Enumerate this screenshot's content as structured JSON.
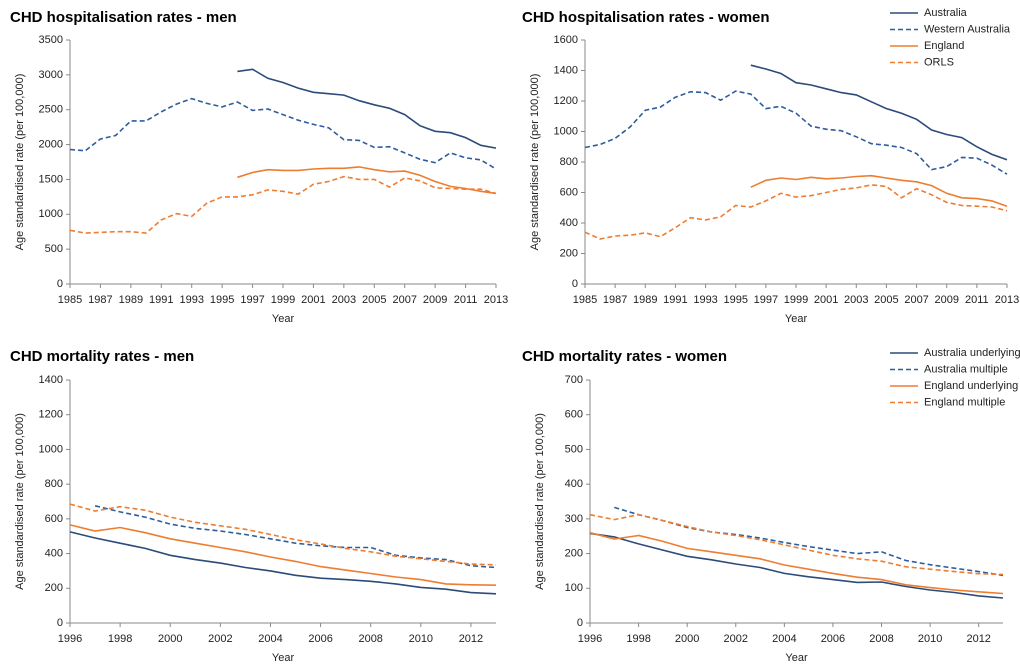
{
  "chart_data": [
    {
      "type": "line",
      "title": "CHD hospitalisation rates - men",
      "x_label": "Year",
      "y_label": "Age standardised rate (per 100,000)",
      "x": [
        1985,
        1986,
        1987,
        1988,
        1989,
        1990,
        1991,
        1992,
        1993,
        1994,
        1995,
        1996,
        1997,
        1998,
        1999,
        2000,
        2001,
        2002,
        2003,
        2004,
        2005,
        2006,
        2007,
        2008,
        2009,
        2010,
        2011,
        2012,
        2013
      ],
      "xlim": [
        1985,
        2013
      ],
      "xticks": [
        1985,
        1987,
        1989,
        1991,
        1993,
        1995,
        1997,
        1999,
        2001,
        2003,
        2005,
        2007,
        2009,
        2011,
        2013
      ],
      "ylim": [
        0,
        3500
      ],
      "yticks": [
        0,
        500,
        1000,
        1500,
        2000,
        2500,
        3000,
        3500
      ],
      "legend": false,
      "series": [
        {
          "color": "#2b4b7a",
          "dash": false,
          "values": [
            null,
            null,
            null,
            null,
            null,
            null,
            null,
            null,
            null,
            null,
            null,
            3050,
            3080,
            2950,
            2890,
            2810,
            2750,
            2730,
            2710,
            2630,
            2570,
            2520,
            2430,
            2270,
            2190,
            2170,
            2100,
            1990,
            1950
          ]
        },
        {
          "color": "#2e5d9e",
          "dash": true,
          "values": [
            1930,
            1910,
            2080,
            2130,
            2340,
            2340,
            2470,
            2580,
            2660,
            2590,
            2540,
            2610,
            2490,
            2510,
            2430,
            2350,
            2290,
            2240,
            2070,
            2060,
            1960,
            1970,
            1880,
            1790,
            1740,
            1880,
            1810,
            1780,
            1650
          ]
        },
        {
          "color": "#ed7d31",
          "dash": false,
          "values": [
            null,
            null,
            null,
            null,
            null,
            null,
            null,
            null,
            null,
            null,
            null,
            1530,
            1600,
            1640,
            1630,
            1630,
            1650,
            1660,
            1660,
            1680,
            1640,
            1610,
            1620,
            1560,
            1470,
            1400,
            1370,
            1330,
            1300
          ]
        },
        {
          "color": "#ed7d31",
          "dash": true,
          "values": [
            770,
            730,
            740,
            750,
            750,
            730,
            920,
            1010,
            970,
            1160,
            1250,
            1250,
            1280,
            1350,
            1330,
            1290,
            1430,
            1470,
            1540,
            1500,
            1500,
            1390,
            1520,
            1480,
            1380,
            1370,
            1360,
            1360,
            1300
          ]
        }
      ]
    },
    {
      "type": "line",
      "title": "CHD hospitalisation rates - women",
      "x_label": "Year",
      "y_label": "Age standardised rate (per 100,000)",
      "x": [
        1985,
        1986,
        1987,
        1988,
        1989,
        1990,
        1991,
        1992,
        1993,
        1994,
        1995,
        1996,
        1997,
        1998,
        1999,
        2000,
        2001,
        2002,
        2003,
        2004,
        2005,
        2006,
        2007,
        2008,
        2009,
        2010,
        2011,
        2012,
        2013
      ],
      "xlim": [
        1985,
        2013
      ],
      "xticks": [
        1985,
        1987,
        1989,
        1991,
        1993,
        1995,
        1997,
        1999,
        2001,
        2003,
        2005,
        2007,
        2009,
        2011,
        2013
      ],
      "ylim": [
        0,
        1600
      ],
      "yticks": [
        0,
        200,
        400,
        600,
        800,
        1000,
        1200,
        1400,
        1600
      ],
      "legend": "upper right",
      "series": [
        {
          "name": "Australia",
          "color": "#2b4b7a",
          "dash": false,
          "values": [
            null,
            null,
            null,
            null,
            null,
            null,
            null,
            null,
            null,
            null,
            null,
            1435,
            1410,
            1380,
            1320,
            1305,
            1280,
            1255,
            1240,
            1195,
            1150,
            1120,
            1080,
            1010,
            980,
            960,
            900,
            850,
            815
          ]
        },
        {
          "name": "Western Australia",
          "color": "#2e5d9e",
          "dash": true,
          "values": [
            895,
            915,
            955,
            1030,
            1140,
            1160,
            1225,
            1260,
            1255,
            1205,
            1265,
            1245,
            1150,
            1165,
            1120,
            1035,
            1015,
            1005,
            965,
            920,
            910,
            895,
            855,
            750,
            770,
            830,
            825,
            780,
            720
          ]
        },
        {
          "name": "England",
          "color": "#ed7d31",
          "dash": false,
          "values": [
            null,
            null,
            null,
            null,
            null,
            null,
            null,
            null,
            null,
            null,
            null,
            635,
            680,
            695,
            685,
            700,
            690,
            695,
            705,
            710,
            695,
            680,
            670,
            645,
            595,
            565,
            560,
            545,
            510
          ]
        },
        {
          "name": "ORLS",
          "color": "#ed7d31",
          "dash": true,
          "values": [
            340,
            295,
            315,
            320,
            335,
            310,
            370,
            435,
            420,
            440,
            515,
            505,
            545,
            595,
            570,
            580,
            600,
            620,
            630,
            650,
            640,
            565,
            625,
            585,
            535,
            515,
            510,
            505,
            480
          ]
        }
      ]
    },
    {
      "type": "line",
      "title": "CHD mortality rates - men",
      "x_label": "Year",
      "y_label": "Age standardised rate (per 100,000)",
      "x": [
        1996,
        1997,
        1998,
        1999,
        2000,
        2001,
        2002,
        2003,
        2004,
        2005,
        2006,
        2007,
        2008,
        2009,
        2010,
        2011,
        2012,
        2013
      ],
      "xlim": [
        1996,
        2013
      ],
      "xticks": [
        1996,
        1998,
        2000,
        2002,
        2004,
        2006,
        2008,
        2010,
        2012
      ],
      "ylim": [
        0,
        1400
      ],
      "yticks": [
        0,
        200,
        400,
        600,
        800,
        1000,
        1200,
        1400
      ],
      "legend": false,
      "series": [
        {
          "color": "#2b4b7a",
          "dash": false,
          "values": [
            525,
            490,
            460,
            430,
            390,
            365,
            345,
            320,
            300,
            275,
            258,
            250,
            240,
            225,
            205,
            195,
            175,
            168
          ]
        },
        {
          "color": "#2e5d9e",
          "dash": true,
          "values": [
            null,
            675,
            640,
            610,
            570,
            545,
            530,
            510,
            485,
            460,
            445,
            435,
            435,
            390,
            375,
            365,
            330,
            320
          ]
        },
        {
          "color": "#ed7d31",
          "dash": false,
          "values": [
            565,
            530,
            550,
            520,
            485,
            460,
            435,
            410,
            380,
            355,
            325,
            305,
            285,
            265,
            250,
            225,
            220,
            218
          ]
        },
        {
          "color": "#ed7d31",
          "dash": true,
          "values": [
            685,
            645,
            670,
            650,
            610,
            580,
            560,
            540,
            510,
            480,
            455,
            430,
            410,
            385,
            370,
            355,
            340,
            335
          ]
        }
      ]
    },
    {
      "type": "line",
      "title": "CHD mortality rates - women",
      "x_label": "Year",
      "y_label": "Age standardised rate (per 100,000)",
      "x": [
        1996,
        1997,
        1998,
        1999,
        2000,
        2001,
        2002,
        2003,
        2004,
        2005,
        2006,
        2007,
        2008,
        2009,
        2010,
        2011,
        2012,
        2013
      ],
      "xlim": [
        1996,
        2013
      ],
      "xticks": [
        1996,
        1998,
        2000,
        2002,
        2004,
        2006,
        2008,
        2010,
        2012
      ],
      "ylim": [
        0,
        700
      ],
      "yticks": [
        0,
        100,
        200,
        300,
        400,
        500,
        600,
        700
      ],
      "legend": "upper right",
      "series": [
        {
          "name": "Australia underlying",
          "color": "#2b4b7a",
          "dash": false,
          "values": [
            258,
            248,
            228,
            210,
            192,
            182,
            170,
            160,
            143,
            133,
            125,
            117,
            118,
            105,
            95,
            88,
            78,
            72
          ]
        },
        {
          "name": "Australia multiple",
          "color": "#2e5d9e",
          "dash": true,
          "values": [
            null,
            333,
            312,
            295,
            275,
            262,
            255,
            245,
            232,
            220,
            210,
            200,
            205,
            180,
            168,
            158,
            148,
            137
          ]
        },
        {
          "name": "England underlying",
          "color": "#ed7d31",
          "dash": false,
          "values": [
            260,
            242,
            252,
            235,
            215,
            205,
            195,
            185,
            167,
            155,
            143,
            132,
            125,
            110,
            102,
            95,
            90,
            85
          ]
        },
        {
          "name": "England multiple",
          "color": "#ed7d31",
          "dash": true,
          "values": [
            312,
            298,
            312,
            295,
            278,
            262,
            252,
            240,
            225,
            210,
            195,
            185,
            178,
            162,
            155,
            148,
            142,
            140
          ]
        }
      ]
    }
  ]
}
